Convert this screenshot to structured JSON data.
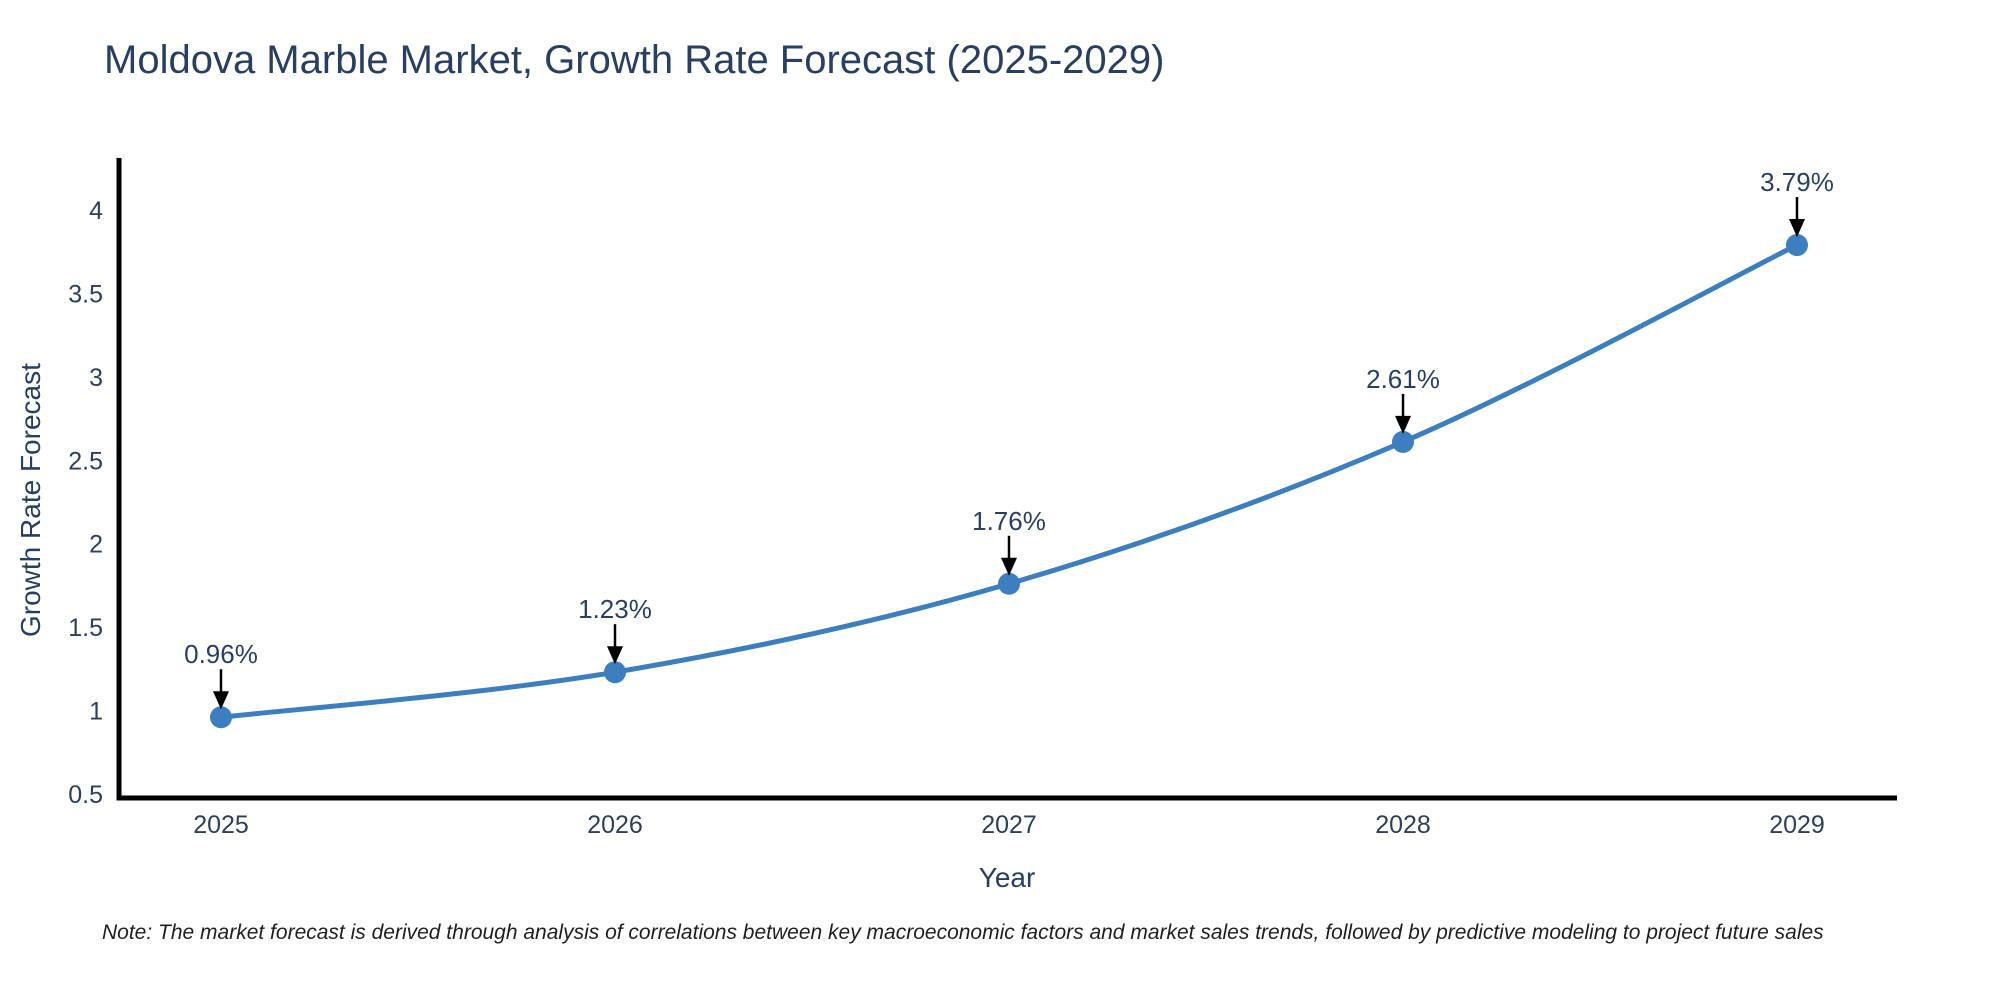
{
  "title": "Moldova Marble Market, Growth Rate Forecast (2025-2029)",
  "note": "Note: The market forecast is derived through analysis of correlations between key macroeconomic factors and market sales trends, followed by predictive modeling to project future sales",
  "chart_data": {
    "type": "line",
    "title": "Moldova Marble Market, Growth Rate Forecast (2025-2029)",
    "xlabel": "Year",
    "ylabel": "Growth Rate Forecast",
    "x": [
      2025,
      2026,
      2027,
      2028,
      2029
    ],
    "xtick_labels": [
      "2025",
      "2026",
      "2027",
      "2028",
      "2029"
    ],
    "series": [
      {
        "name": "Growth Rate Forecast",
        "values": [
          0.96,
          1.23,
          1.76,
          2.61,
          3.79
        ]
      }
    ],
    "point_labels": [
      "0.96%",
      "1.23%",
      "1.76%",
      "2.61%",
      "3.79%"
    ],
    "yticks": [
      0.5,
      1,
      1.5,
      2,
      2.5,
      3,
      3.5,
      4
    ],
    "ylim": [
      0.5,
      4
    ],
    "xlim": [
      2025,
      2029
    ],
    "grid": false,
    "legend_position": "none",
    "annotation_style": "value label with downward arrow to each marker",
    "colors": {
      "line": "#3d7ebf",
      "marker": "#3d7ebf",
      "axis": "#000000",
      "title_text": "#2a3f5f",
      "tick_text": "#2f3f58",
      "annotation_text": "#2a3f5f",
      "arrow": "#000000",
      "note_text": "#1f1f1f",
      "background": "#ffffff"
    }
  }
}
